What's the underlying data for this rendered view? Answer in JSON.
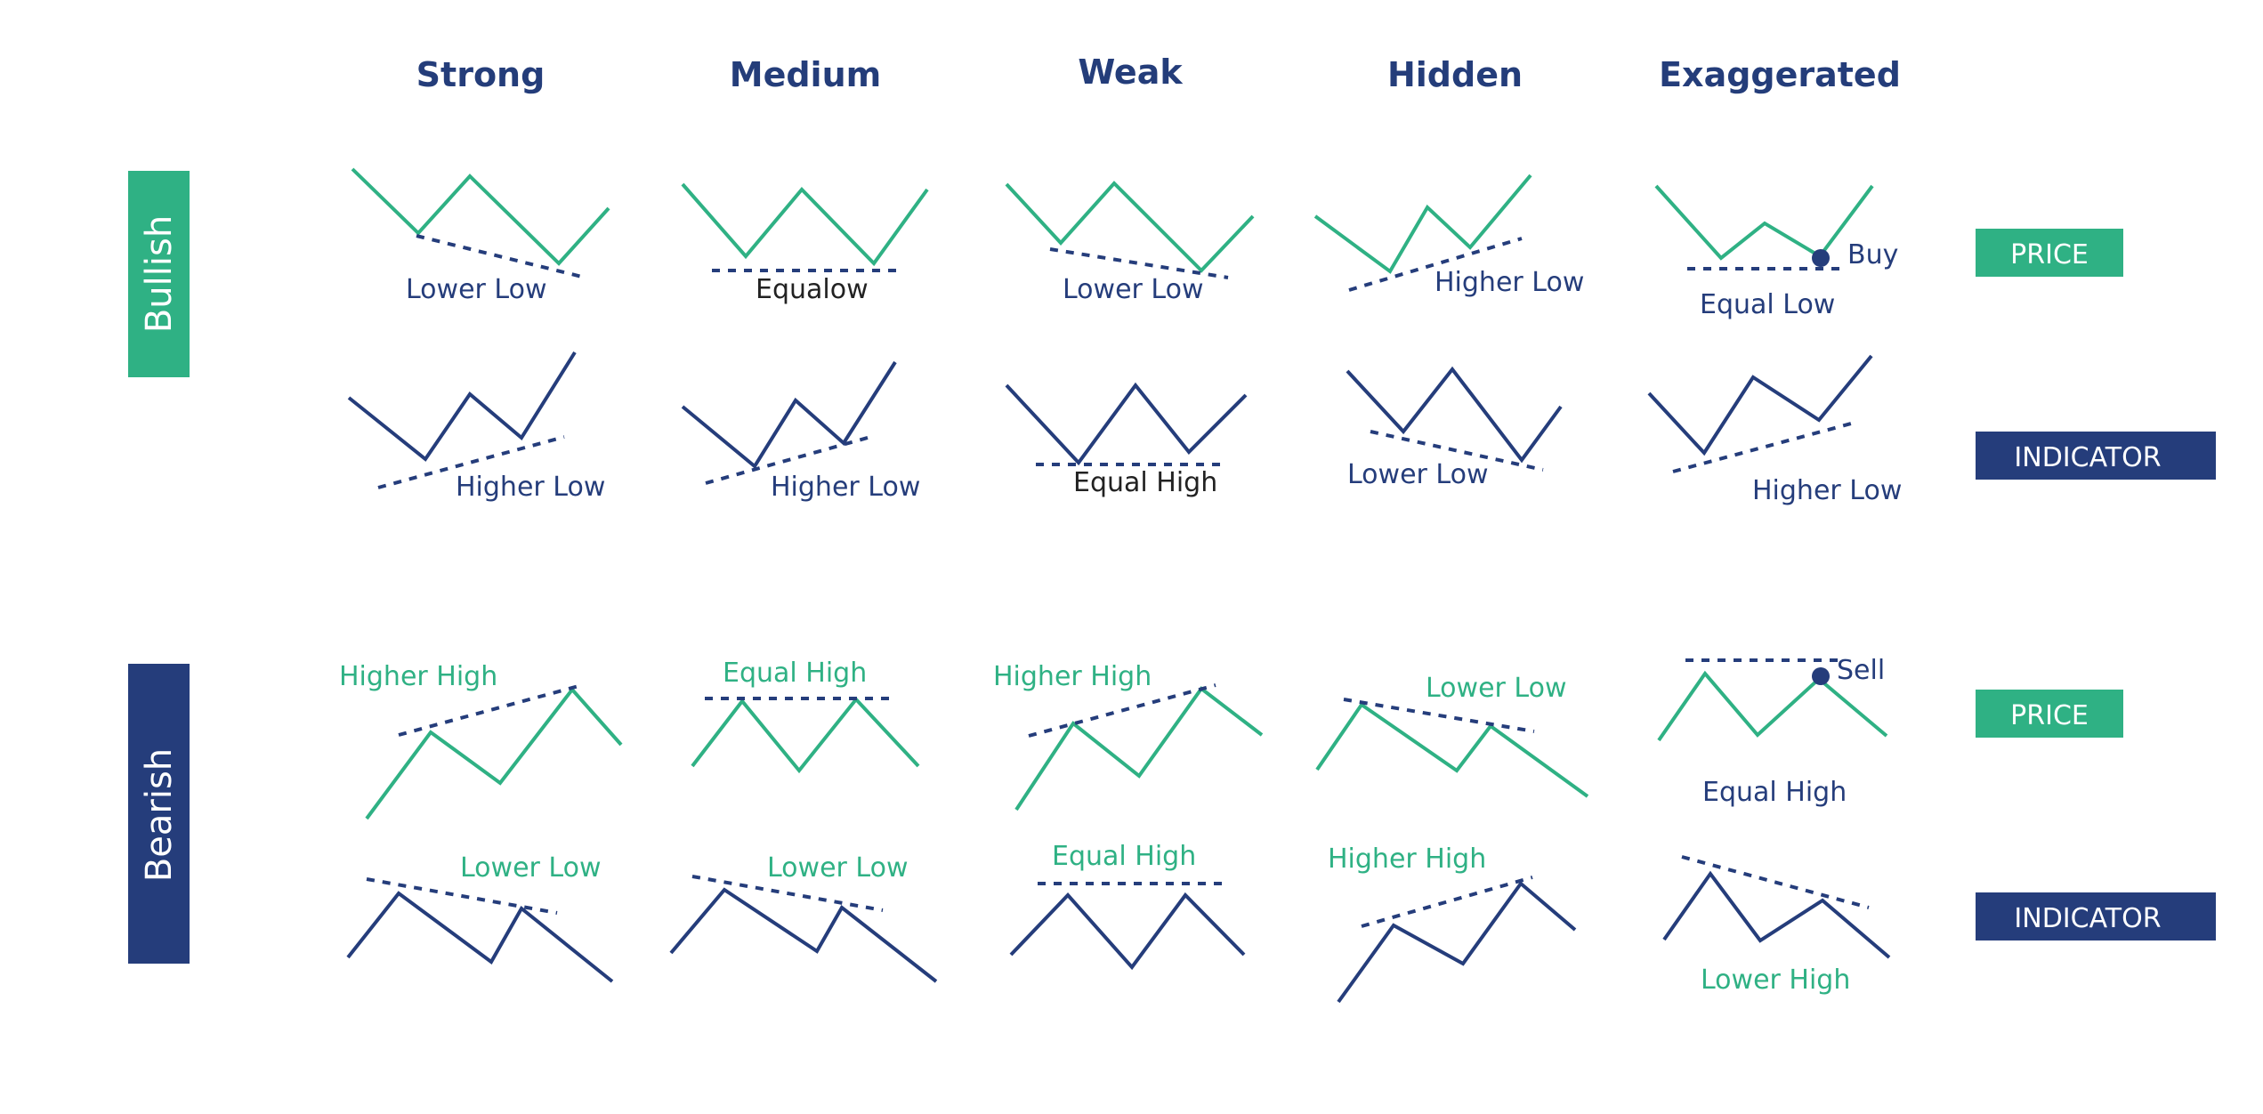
{
  "colors": {
    "green": "#2fb184",
    "navy": "#253d7b",
    "white": "#ffffff",
    "black": "#222222"
  },
  "columns": [
    "Strong",
    "Medium",
    "Weak",
    "Hidden",
    "Exaggerated"
  ],
  "rows": {
    "bullish": "Bullish",
    "bearish": "Bearish"
  },
  "badges": {
    "price": "PRICE",
    "indicator": "INDICATOR"
  },
  "labels": {
    "bull_price": [
      "Lower Low",
      "Equalow",
      "Lower Low",
      "Higher Low",
      "Equal Low"
    ],
    "bull_ind": [
      "Higher Low",
      "Higher Low",
      "Equal High",
      "Lower Low",
      "Higher Low"
    ],
    "bear_price": [
      "Higher High",
      "Equal High",
      "Higher High",
      "Lower Low",
      "Equal High"
    ],
    "bear_ind": [
      "Lower Low",
      "Lower Low",
      "Equal High",
      "Higher High",
      "Lower High"
    ]
  },
  "signals": {
    "buy": "Buy",
    "sell": "Sell"
  }
}
